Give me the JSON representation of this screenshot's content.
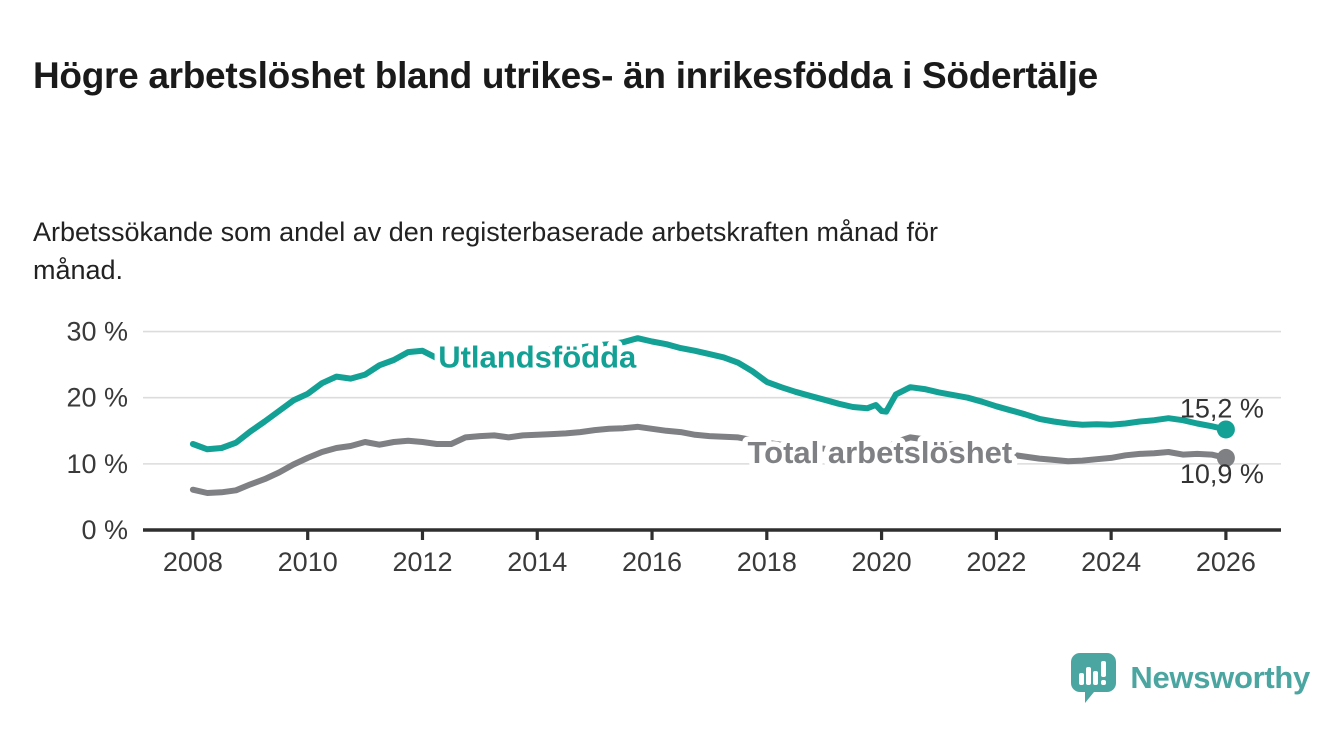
{
  "header": {
    "title": "Högre arbetslöshet bland utrikes- än inrikesfödda i Södertälje",
    "subtitle": "Arbetssökande som andel av den registerbaserade arbetskraften månad för månad."
  },
  "chart_data": {
    "type": "line",
    "title": "Högre arbetslöshet bland utrikes- än inrikesfödda i Södertälje",
    "xlabel": "",
    "ylabel": "",
    "x_unit": "decimal year (monthly data sampled quarterly)",
    "xlim": [
      2007.13,
      2026.96
    ],
    "ylim": [
      0,
      33
    ],
    "grid": "horizontal",
    "legend_position": "inline-labels",
    "yticks": [
      {
        "value": 0,
        "label": "0 %"
      },
      {
        "value": 10,
        "label": "10 %"
      },
      {
        "value": 20,
        "label": "20 %"
      },
      {
        "value": 30,
        "label": "30 %"
      }
    ],
    "xticks": [
      {
        "value": 2008,
        "label": "2008"
      },
      {
        "value": 2010,
        "label": "2010"
      },
      {
        "value": 2012,
        "label": "2012"
      },
      {
        "value": 2014,
        "label": "2014"
      },
      {
        "value": 2016,
        "label": "2016"
      },
      {
        "value": 2018,
        "label": "2018"
      },
      {
        "value": 2020,
        "label": "2020"
      },
      {
        "value": 2022,
        "label": "2022"
      },
      {
        "value": 2024,
        "label": "2024"
      },
      {
        "value": 2026,
        "label": "2026"
      }
    ],
    "x": [
      2008.0,
      2008.25,
      2008.5,
      2008.75,
      2009.0,
      2009.25,
      2009.5,
      2009.75,
      2010.0,
      2010.25,
      2010.5,
      2010.75,
      2011.0,
      2011.25,
      2011.5,
      2011.75,
      2012.0,
      2012.25,
      2012.5,
      2012.75,
      2013.0,
      2013.25,
      2013.5,
      2013.75,
      2014.0,
      2014.25,
      2014.5,
      2014.75,
      2015.0,
      2015.25,
      2015.5,
      2015.75,
      2016.0,
      2016.25,
      2016.5,
      2016.75,
      2017.0,
      2017.25,
      2017.5,
      2017.75,
      2018.0,
      2018.25,
      2018.5,
      2018.75,
      2019.0,
      2019.25,
      2019.5,
      2019.75,
      2019.9,
      2020.0,
      2020.08,
      2020.25,
      2020.5,
      2020.75,
      2021.0,
      2021.25,
      2021.5,
      2021.75,
      2022.0,
      2022.25,
      2022.5,
      2022.75,
      2023.0,
      2023.25,
      2023.5,
      2023.75,
      2024.0,
      2024.25,
      2024.5,
      2024.75,
      2025.0,
      2025.25,
      2025.5,
      2025.75,
      2026.0
    ],
    "series": [
      {
        "name": "Utlandsfödda",
        "color": "#14A195",
        "end_value": 15.2,
        "end_label": "15,2 %",
        "end_label_side": "above",
        "inline_label": {
          "text": "Utlandsfödda",
          "x": 2014.0,
          "y": 24.6
        },
        "values": [
          13.0,
          12.2,
          12.4,
          13.2,
          14.9,
          16.4,
          18.0,
          19.6,
          20.6,
          22.2,
          23.2,
          22.9,
          23.5,
          24.9,
          25.7,
          26.9,
          27.1,
          26.0,
          25.7,
          26.0,
          26.2,
          26.5,
          26.4,
          26.7,
          27.0,
          27.3,
          27.2,
          27.6,
          27.9,
          28.1,
          28.4,
          29.0,
          28.5,
          28.1,
          27.5,
          27.1,
          26.6,
          26.1,
          25.3,
          24.0,
          22.4,
          21.6,
          20.9,
          20.3,
          19.7,
          19.1,
          18.6,
          18.4,
          18.9,
          18.0,
          17.9,
          20.5,
          21.6,
          21.3,
          20.8,
          20.4,
          20.0,
          19.4,
          18.7,
          18.1,
          17.5,
          16.8,
          16.4,
          16.1,
          15.9,
          16.0,
          15.9,
          16.1,
          16.4,
          16.6,
          16.9,
          16.6,
          16.1,
          15.7,
          15.2
        ]
      },
      {
        "name": "Total arbetslöshet",
        "color": "#7F8083",
        "end_value": 10.9,
        "end_label": "10,9 %",
        "end_label_side": "below",
        "inline_label": {
          "text": "Total arbetslöshet",
          "x": 2019.97,
          "y": 10.1
        },
        "values": [
          6.1,
          5.6,
          5.7,
          6.0,
          6.9,
          7.7,
          8.7,
          9.9,
          10.9,
          11.8,
          12.4,
          12.7,
          13.3,
          12.9,
          13.3,
          13.5,
          13.3,
          13.0,
          13.0,
          14.0,
          14.2,
          14.3,
          14.0,
          14.3,
          14.4,
          14.5,
          14.6,
          14.8,
          15.1,
          15.3,
          15.4,
          15.6,
          15.3,
          15.0,
          14.8,
          14.4,
          14.2,
          14.1,
          14.0,
          13.6,
          13.2,
          12.9,
          12.7,
          12.5,
          12.3,
          12.1,
          12.0,
          11.9,
          11.9,
          12.0,
          12.2,
          13.3,
          14.0,
          13.7,
          13.3,
          12.9,
          12.5,
          12.0,
          11.7,
          11.4,
          11.1,
          10.8,
          10.6,
          10.4,
          10.5,
          10.7,
          10.9,
          11.3,
          11.5,
          11.6,
          11.8,
          11.4,
          11.5,
          11.4,
          10.9
        ]
      }
    ],
    "colors": {
      "grid": "#DCDCDC",
      "axis": "#2F2F2F",
      "tick_text": "#3A3A3A",
      "end_label_text": "#333333"
    }
  },
  "footer": {
    "brand": "Newsworthy",
    "brand_color": "#4BA5A1"
  }
}
